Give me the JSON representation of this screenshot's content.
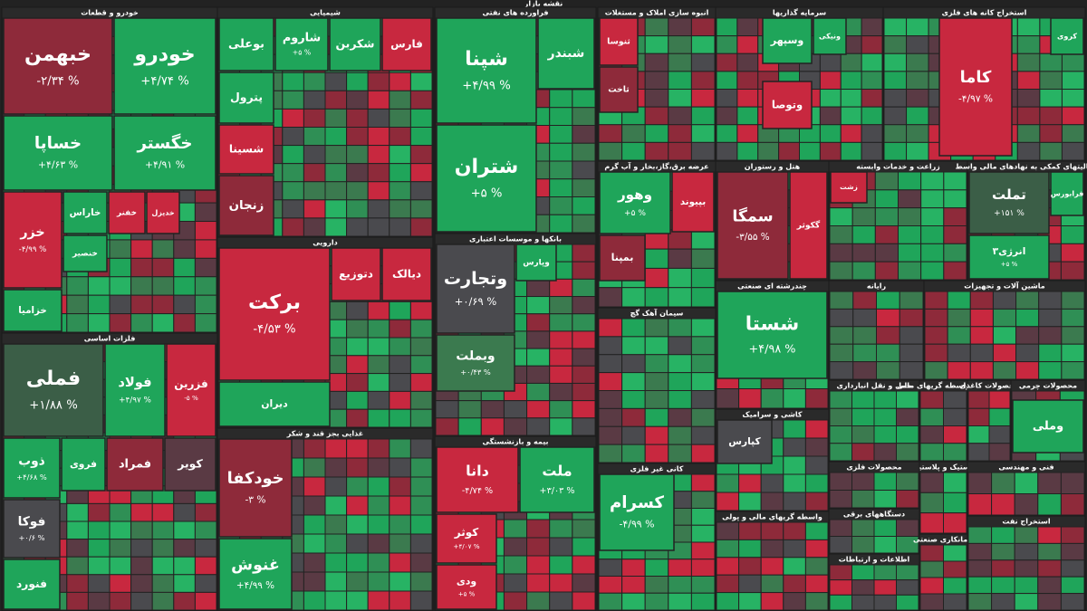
{
  "title": "نقشه بازار",
  "sectors": [
    {
      "name": "خودرو و قطعات",
      "tiles": [
        {
          "name": "خبهمن",
          "change": "-۲/۳۴ %",
          "color": "#8e2a3a"
        },
        {
          "name": "خودرو",
          "change": "+۴/۷۴ %",
          "color": "#1fa55a"
        },
        {
          "name": "خساپا",
          "change": "+۴/۶۳ %",
          "color": "#1fa55a"
        },
        {
          "name": "خگستر",
          "change": "+۴/۹۱ %",
          "color": "#1fa55a"
        },
        {
          "name": "خزر",
          "change": "-۴/۹۹ %",
          "color": "#c8283f"
        },
        {
          "name": "خاراس",
          "color": "#1fa55a"
        },
        {
          "name": "خفنر",
          "color": "#c8283f"
        },
        {
          "name": "خدیزل",
          "color": "#c8283f"
        },
        {
          "name": "خنصیر",
          "color": "#1fa55a"
        },
        {
          "name": "خزامیا",
          "color": "#1fa55a"
        }
      ]
    },
    {
      "name": "شیمیایی",
      "tiles": [
        {
          "name": "بوعلی",
          "color": "#1fa55a"
        },
        {
          "name": "شاروم",
          "change": "+۵ %",
          "color": "#1fa55a"
        },
        {
          "name": "شکربن",
          "color": "#1fa55a"
        },
        {
          "name": "فارس",
          "color": "#c8283f"
        },
        {
          "name": "پترول",
          "color": "#1fa55a"
        },
        {
          "name": "شسینا",
          "color": "#c8283f"
        },
        {
          "name": "زنجان",
          "color": "#8e2a3a"
        }
      ]
    },
    {
      "name": "فراورده های نفتی",
      "tiles": [
        {
          "name": "شپنا",
          "change": "+۴/۹۹ %",
          "color": "#1fa55a"
        },
        {
          "name": "شبندر",
          "color": "#1fa55a"
        },
        {
          "name": "شتران",
          "change": "+۵ %",
          "color": "#1fa55a"
        }
      ]
    },
    {
      "name": "انبوه سازی املاک و مستغلات",
      "tiles": [
        {
          "name": "ثنوسا",
          "color": "#c8283f"
        },
        {
          "name": "ثاخت",
          "color": "#8e2a3a"
        }
      ]
    },
    {
      "name": "سرمایه گذاریها",
      "tiles": [
        {
          "name": "وسپهر",
          "color": "#1fa55a"
        },
        {
          "name": "ونیکی",
          "color": "#1fa55a"
        },
        {
          "name": "وتوصا",
          "color": "#c8283f"
        }
      ]
    },
    {
      "name": "استخراج کانه های فلزی",
      "tiles": [
        {
          "name": "کاما",
          "change": "-۴/۹۷ %",
          "color": "#c8283f"
        },
        {
          "name": "کروی",
          "color": "#1fa55a"
        }
      ]
    },
    {
      "name": "فلزات اساسی",
      "tiles": [
        {
          "name": "فملی",
          "change": "+۱/۸۸ %",
          "color": "#3b5e47"
        },
        {
          "name": "فولاد",
          "change": "+۴/۹۷ %",
          "color": "#1fa55a"
        },
        {
          "name": "فزرین",
          "change": "-۵ %",
          "color": "#c8283f"
        },
        {
          "name": "ذوب",
          "change": "+۴/۶۸ %",
          "color": "#1fa55a"
        },
        {
          "name": "فروی",
          "color": "#1fa55a"
        },
        {
          "name": "فمراد",
          "color": "#8e2a3a"
        },
        {
          "name": "کویر",
          "color": "#5a3a44"
        },
        {
          "name": "فوکا",
          "change": "+۰/۶ %",
          "color": "#4a4a4e"
        },
        {
          "name": "فنورد",
          "color": "#1fa55a"
        }
      ]
    },
    {
      "name": "دارویی",
      "tiles": [
        {
          "name": "برکت",
          "change": "-۴/۵۳ %",
          "color": "#c8283f"
        },
        {
          "name": "دتوزیع",
          "color": "#c8283f"
        },
        {
          "name": "دیالک",
          "color": "#c8283f"
        },
        {
          "name": "دیران",
          "color": "#1fa55a"
        }
      ]
    },
    {
      "name": "غذایی بجز قند و شکر",
      "tiles": [
        {
          "name": "خودکفا",
          "change": "-۳ %",
          "color": "#8e2a3a"
        },
        {
          "name": "غنوش",
          "change": "+۴/۹۹ %",
          "color": "#1fa55a"
        }
      ]
    },
    {
      "name": "بانکها و موسسات اعتباری",
      "tiles": [
        {
          "name": "وتجارت",
          "change": "+۰/۶۹ %",
          "color": "#4a4a4e"
        },
        {
          "name": "وبملت",
          "change": "+۰/۴۳ %",
          "color": "#3b7a4f"
        },
        {
          "name": "وپارس",
          "color": "#1fa55a"
        }
      ]
    },
    {
      "name": "بیمه و بازنشستگی",
      "tiles": [
        {
          "name": "دانا",
          "change": "-۴/۷۴ %",
          "color": "#c8283f"
        },
        {
          "name": "ملت",
          "change": "+۳/۰۳ %",
          "color": "#1fa55a"
        },
        {
          "name": "کوثر",
          "change": "+۴/۰۷ %",
          "color": "#c8283f"
        },
        {
          "name": "ودی",
          "change": "+۵ %",
          "color": "#c8283f"
        }
      ]
    },
    {
      "name": "عرضه برق،گاز،بخار و آب گرم",
      "tiles": [
        {
          "name": "وهور",
          "change": "+۵ %",
          "color": "#1fa55a"
        },
        {
          "name": "بپیوند",
          "color": "#c8283f"
        },
        {
          "name": "بمپنا",
          "color": "#8e2a3a"
        }
      ]
    },
    {
      "name": "سیمان آهک گچ",
      "tiles": []
    },
    {
      "name": "کانی غیر فلزی",
      "tiles": [
        {
          "name": "کسرام",
          "change": "-۴/۹۹ %",
          "color": "#1fa55a"
        }
      ]
    },
    {
      "name": "هتل و رستوران",
      "tiles": [
        {
          "name": "سمگا",
          "change": "-۳/۵۵ %",
          "color": "#8e2a3a"
        },
        {
          "name": "گکوثر",
          "color": "#c8283f"
        }
      ]
    },
    {
      "name": "زراعت و خدمات وابسته",
      "tiles": [
        {
          "name": "زشت",
          "color": "#c8283f"
        }
      ]
    },
    {
      "name": "فعالیتهای کمکی به نهادهای مالی واسط",
      "tiles": [
        {
          "name": "تملت",
          "change": "+۱۵۱ %",
          "color": "#3b5e47"
        },
        {
          "name": "انرژی۳",
          "change": "+۵ %",
          "color": "#1fa55a"
        },
        {
          "name": "فرابورس",
          "color": "#1fa55a"
        }
      ]
    },
    {
      "name": "چندرشته ای صنعتی",
      "tiles": [
        {
          "name": "شستا",
          "change": "+۴/۹۸ %",
          "color": "#1fa55a"
        }
      ]
    },
    {
      "name": "رایانه",
      "tiles": []
    },
    {
      "name": "ماشین آلات و تجهیزات",
      "tiles": []
    },
    {
      "name": "کاشی و سرامیک",
      "tiles": [
        {
          "name": "کپارس",
          "color": "#4a4a4e"
        }
      ]
    },
    {
      "name": "واسطه گریهای مالی و پولی",
      "tiles": []
    },
    {
      "name": "حمل و نقل انبارداری",
      "tiles": []
    },
    {
      "name": "سایر واسطه گریهای مالی",
      "tiles": []
    },
    {
      "name": "محصولات کاغذی",
      "tiles": []
    },
    {
      "name": "محصولات چرمی",
      "tiles": [
        {
          "name": "وملی",
          "color": "#1fa55a"
        }
      ]
    },
    {
      "name": "لاستیک و پلاستیک",
      "tiles": []
    },
    {
      "name": "فنی و مهندسی",
      "tiles": []
    },
    {
      "name": "محصولات فلزی",
      "tiles": []
    },
    {
      "name": "دستگاههای برقی",
      "tiles": []
    },
    {
      "name": "اطلاعات و ارتباطات",
      "tiles": []
    },
    {
      "name": "پیمانکاری صنعتی",
      "tiles": []
    },
    {
      "name": "استخراج نفت",
      "tiles": []
    }
  ]
}
